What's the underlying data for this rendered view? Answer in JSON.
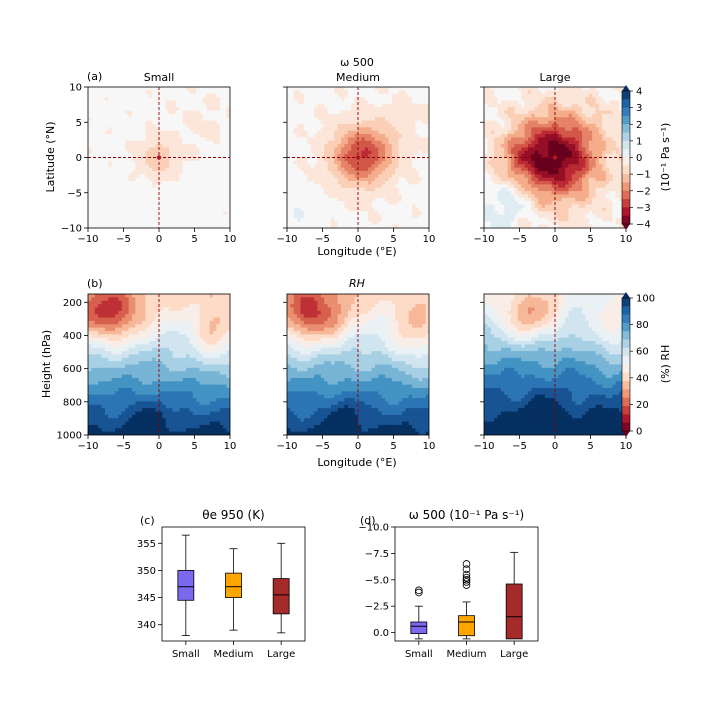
{
  "figure": {
    "top_title_line1": "ω 500",
    "panel_a_label": "(a)",
    "panel_b_label": "(b)",
    "panel_c_label": "(c)",
    "panel_d_label": "(d)",
    "row_b_title": "RH",
    "xlabel": "Longitude (°E)",
    "ylabel_a": "Latitude (°N)",
    "ylabel_b": "Height (hPa)",
    "colorbar_a_label": "(10⁻¹ Pa s⁻¹)",
    "colorbar_b_label": "(%) RH"
  },
  "chart_data": [
    {
      "id": "omega500_maps",
      "type": "heatmap",
      "panels": [
        "Small",
        "Medium",
        "Large"
      ],
      "x_range": [
        -10,
        10
      ],
      "y_range": [
        -10,
        10
      ],
      "x_ticks": [
        -10,
        -5,
        0,
        5,
        10
      ],
      "y_ticks": [
        -10,
        -5,
        0,
        5,
        10
      ],
      "x_tick_labels": [
        "−10",
        "−5",
        "0",
        "5",
        "10"
      ],
      "y_tick_labels": [
        "−10",
        "−5",
        "0",
        "5",
        "10"
      ],
      "xlabel": "Longitude (°E)",
      "ylabel": "Latitude (°N)",
      "peak_omega": [
        -1.0,
        -2.0,
        -4.0
      ],
      "colorbar": {
        "range": [
          -4,
          4
        ],
        "ticks": [
          4,
          3,
          2,
          1,
          0,
          -1,
          -2,
          -3,
          -4
        ],
        "tick_labels": [
          "4",
          "3",
          "2",
          "1",
          "0",
          "−1",
          "−2",
          "−3",
          "−4"
        ],
        "label": "(10⁻¹ Pa s⁻¹)"
      }
    },
    {
      "id": "rh_sections",
      "type": "heatmap",
      "panels": [
        "Small",
        "Medium",
        "Large"
      ],
      "x_range": [
        -10,
        10
      ],
      "y_range": [
        1000,
        150
      ],
      "x_ticks": [
        -10,
        -5,
        0,
        5,
        10
      ],
      "y_ticks": [
        200,
        400,
        600,
        800,
        1000
      ],
      "x_tick_labels": [
        "−10",
        "−5",
        "0",
        "5",
        "10"
      ],
      "y_tick_labels": [
        "200",
        "400",
        "600",
        "800",
        "1000"
      ],
      "xlabel": "Longitude (°E)",
      "ylabel": "Height (hPa)",
      "colorbar": {
        "range": [
          0,
          100
        ],
        "ticks": [
          100,
          80,
          60,
          40,
          20,
          0
        ],
        "tick_labels": [
          "100",
          "80",
          "60",
          "40",
          "20",
          "0"
        ],
        "label": "(%) RH"
      }
    },
    {
      "id": "theta_e_box",
      "type": "box",
      "title": "θe 950 (K)",
      "categories": [
        "Small",
        "Medium",
        "Large"
      ],
      "colors": [
        "#7b68ee",
        "#ffa500",
        "#a52a2a"
      ],
      "whisker_low": [
        338.0,
        339.0,
        338.5
      ],
      "q1": [
        344.5,
        345.0,
        342.0
      ],
      "median": [
        347.0,
        347.0,
        345.5
      ],
      "q3": [
        350.0,
        349.5,
        348.5
      ],
      "whisker_high": [
        356.5,
        354.0,
        355.0
      ],
      "ylim": [
        337,
        358
      ],
      "y_ticks": [
        340,
        345,
        350,
        355
      ],
      "y_tick_labels": [
        "340",
        "345",
        "350",
        "355"
      ]
    },
    {
      "id": "omega_box",
      "type": "box",
      "title": "ω 500 (10⁻¹ Pa s⁻¹)",
      "categories": [
        "Small",
        "Medium",
        "Large"
      ],
      "colors": [
        "#7b68ee",
        "#ffa500",
        "#a52a2a"
      ],
      "whisker_low": [
        0.6,
        0.6,
        0.3
      ],
      "q1": [
        0.1,
        0.3,
        0.6
      ],
      "median": [
        -0.6,
        -1.0,
        -1.5
      ],
      "q3": [
        -1.0,
        -1.6,
        -4.6
      ],
      "whisker_high": [
        -2.5,
        -2.9,
        -7.6
      ],
      "outliers": [
        [
          -3.8,
          -4.0
        ],
        [
          -4.5,
          -4.8,
          -5.0,
          -5.2,
          -5.5,
          -6.0,
          -6.5
        ],
        []
      ],
      "ylim": [
        0.8,
        -10.0
      ],
      "y_ticks": [
        0.0,
        -2.5,
        -5.0,
        -7.5,
        -10.0
      ],
      "y_tick_labels": [
        "0.0",
        "−2.5",
        "−5.0",
        "−7.5",
        "−10.0"
      ]
    }
  ]
}
